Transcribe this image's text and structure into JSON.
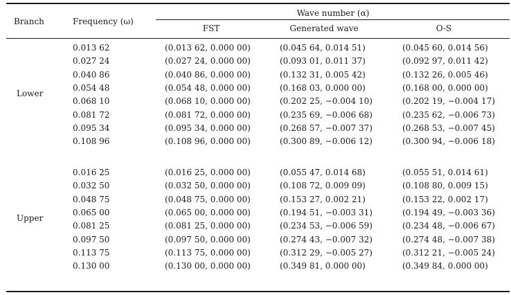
{
  "table": {
    "headers": {
      "branch": "Branch",
      "frequency": "Frequency (ω)",
      "wave_number": "Wave number (α)",
      "fst": "FST",
      "generated_wave": "Generated wave",
      "os": "O-S"
    },
    "groups": [
      {
        "branch": "Lower",
        "rows": [
          {
            "freq": "0.013 62",
            "fst": "(0.013 62, 0.000 00)",
            "gen": "(0.045 64, 0.014 51)",
            "os": "(0.045 60, 0.014 56)"
          },
          {
            "freq": "0.027 24",
            "fst": "(0.027 24, 0.000 00)",
            "gen": "(0.093 01, 0.011 37)",
            "os": "(0.092 97, 0.011 42)"
          },
          {
            "freq": "0.040 86",
            "fst": "(0.040 86, 0.000 00)",
            "gen": "(0.132 31, 0.005 42)",
            "os": "(0.132 26, 0.005 46)"
          },
          {
            "freq": "0.054 48",
            "fst": "(0.054 48, 0.000 00)",
            "gen": "(0.168 03, 0.000 00)",
            "os": "(0.168 00, 0.000 00)"
          },
          {
            "freq": "0.068 10",
            "fst": "(0.068 10, 0.000 00)",
            "gen": "(0.202 25, −0.004 10)",
            "os": "(0.202 19, −0.004 17)"
          },
          {
            "freq": "0.081 72",
            "fst": "(0.081 72, 0.000 00)",
            "gen": "(0.235 69, −0.006 68)",
            "os": "(0.235 62, −0.006 73)"
          },
          {
            "freq": "0.095 34",
            "fst": "(0.095 34, 0.000 00)",
            "gen": "(0.268 57, −0.007 37)",
            "os": "(0.268 53, −0.007 45)"
          },
          {
            "freq": "0.108 96",
            "fst": "(0.108 96, 0.000 00)",
            "gen": "(0.300 89, −0.006 12)",
            "os": "(0.300 94, −0.006 18)"
          }
        ]
      },
      {
        "branch": "Upper",
        "rows": [
          {
            "freq": "0.016 25",
            "fst": "(0.016 25, 0.000 00)",
            "gen": "(0.055 47, 0.014 68)",
            "os": "(0.055 51, 0.014 61)"
          },
          {
            "freq": "0.032 50",
            "fst": "(0.032 50, 0.000 00)",
            "gen": "(0.108 72, 0.009 09)",
            "os": "(0.108 80, 0.009 15)"
          },
          {
            "freq": "0.048 75",
            "fst": "(0.048 75, 0.000 00)",
            "gen": "(0.153 27, 0.002 21)",
            "os": "(0.153 22, 0.002 17)"
          },
          {
            "freq": "0.065 00",
            "fst": "(0.065 00, 0.000 00)",
            "gen": "(0.194 51, −0.003 31)",
            "os": "(0.194 49, −0.003 36)"
          },
          {
            "freq": "0.081 25",
            "fst": "(0.081 25, 0.000 00)",
            "gen": "(0.234 53, −0.006 59)",
            "os": "(0.234 48, −0.006 67)"
          },
          {
            "freq": "0.097 50",
            "fst": "(0.097 50, 0.000 00)",
            "gen": "(0.274 43, −0.007 32)",
            "os": "(0.274 48, −0.007 38)"
          },
          {
            "freq": "0.113 75",
            "fst": "(0.113 75, 0.000 00)",
            "gen": "(0.312 29, −0.005 27)",
            "os": "(0.312 21, −0.005 24)"
          },
          {
            "freq": "0.130 00",
            "fst": "(0.130 00, 0.000 00)",
            "gen": "(0.349 81, 0.000 00)",
            "os": "(0.349 84, 0.000 00)"
          }
        ]
      }
    ]
  }
}
